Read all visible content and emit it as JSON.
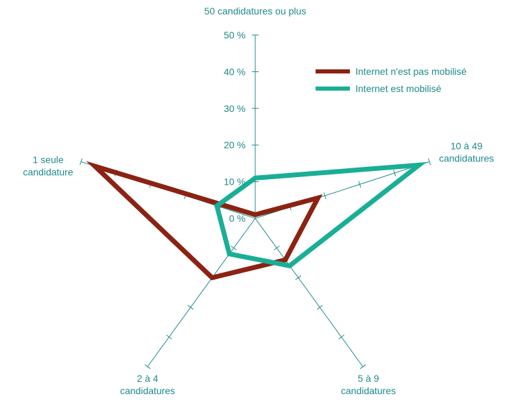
{
  "chart_data": {
    "type": "radar",
    "axes": [
      "50 candidatures ou plus",
      "10 à 49 candidatures",
      "5 à 9 candidatures",
      "2 à 4 candidatures",
      "1 seule candidature"
    ],
    "axis_label_lines": [
      [
        "50 candidatures ou plus"
      ],
      [
        "10 à 49",
        "candidatures"
      ],
      [
        "5 à 9",
        "candidatures"
      ],
      [
        "2 à 4",
        "candidatures"
      ],
      [
        "1 seule",
        "candidature"
      ]
    ],
    "rmax": 50,
    "ticks": [
      0,
      10,
      20,
      30,
      40,
      50
    ],
    "tick_labels": [
      "0 %",
      "10 %",
      "20 %",
      "30 %",
      "40 %",
      "50 %"
    ],
    "series": [
      {
        "name": "Internet n'est pas mobilisé",
        "color": "#8b2212",
        "values": [
          1,
          18,
          14,
          20,
          46
        ]
      },
      {
        "name": "Internet est mobilisé",
        "color": "#1aae96",
        "values": [
          11,
          47,
          16,
          12,
          11
        ]
      }
    ],
    "legend_position": "top-right",
    "axis_color": "#1f8a8a"
  }
}
